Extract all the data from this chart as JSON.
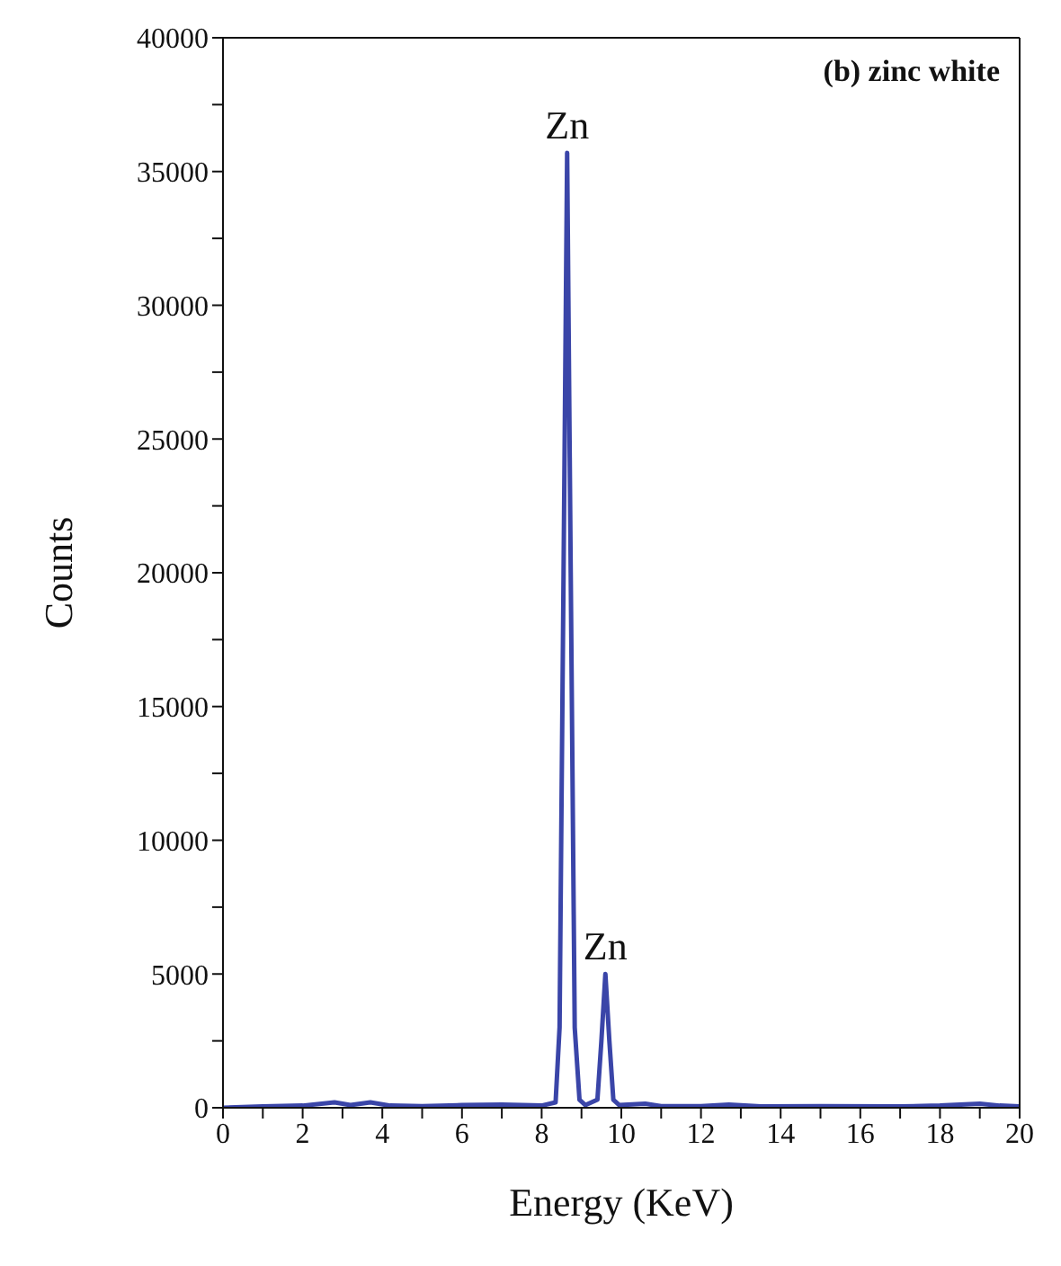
{
  "chart_data": {
    "type": "line",
    "title": "(b) zinc white",
    "xlabel": "Energy (KeV)",
    "ylabel": "Counts",
    "x": [
      0,
      1,
      2,
      2.8,
      3.2,
      3.7,
      4.2,
      5,
      6,
      7,
      8,
      8.35,
      8.45,
      8.55,
      8.64,
      8.73,
      8.83,
      8.95,
      9.1,
      9.4,
      9.5,
      9.6,
      9.7,
      9.8,
      9.95,
      10.6,
      11,
      12,
      12.7,
      13.5,
      15,
      17,
      18,
      19,
      19.5,
      20
    ],
    "series": [
      {
        "color": "#3a45a8",
        "values": [
          0,
          50,
          80,
          200,
          100,
          200,
          80,
          60,
          100,
          120,
          80,
          200,
          3000,
          20000,
          35700,
          20000,
          3000,
          300,
          100,
          300,
          2500,
          5000,
          2500,
          300,
          100,
          150,
          60,
          60,
          120,
          50,
          60,
          50,
          80,
          150,
          80,
          50
        ]
      }
    ],
    "xlim": [
      0,
      20
    ],
    "xticks": [
      0,
      {
        "value": 1,
        "label": null
      },
      2,
      {
        "value": 3,
        "label": null
      },
      4,
      {
        "value": 5,
        "label": null
      },
      6,
      {
        "value": 7,
        "label": null
      },
      8,
      {
        "value": 9,
        "label": null
      },
      10,
      {
        "value": 11,
        "label": null
      },
      12,
      {
        "value": 13,
        "label": null
      },
      14,
      {
        "value": 15,
        "label": null
      },
      16,
      {
        "value": 17,
        "label": null
      },
      18,
      {
        "value": 19,
        "label": null
      },
      20
    ],
    "ylim": [
      0,
      40000
    ],
    "yticks": [
      0,
      {
        "value": 2500,
        "label": null
      },
      5000,
      {
        "value": 7500,
        "label": null
      },
      10000,
      {
        "value": 12500,
        "label": null
      },
      15000,
      {
        "value": 17500,
        "label": null
      },
      20000,
      {
        "value": 22500,
        "label": null
      },
      25000,
      {
        "value": 27500,
        "label": null
      },
      30000,
      {
        "value": 32500,
        "label": null
      },
      35000,
      {
        "value": 37500,
        "label": null
      },
      40000
    ],
    "annotations": [
      {
        "text": "Zn",
        "x": 8.64,
        "y": 35700
      },
      {
        "text": "Zn",
        "x": 9.6,
        "y": 5000
      }
    ],
    "marker": "none",
    "line_style": "solid"
  }
}
